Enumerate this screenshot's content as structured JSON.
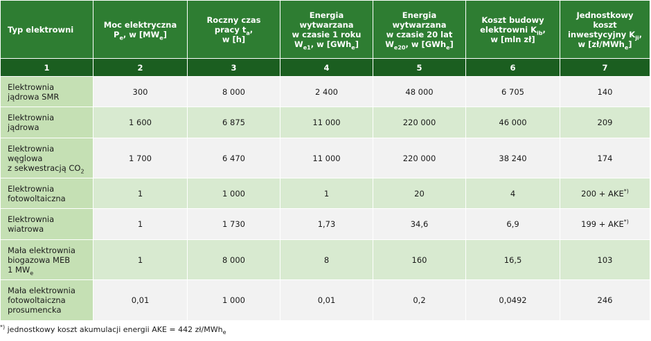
{
  "header": {
    "c1": "Typ elektrowni",
    "c2": {
      "l1": "Moc elektryczna",
      "l2a": "P",
      "l2sub": "e",
      "l2b": ", w [MW",
      "l2sub2": "e",
      "l2c": "]"
    },
    "c3": {
      "l1": "Roczny czas",
      "l2a": "pracy t",
      "l2sub": "a",
      "l2b": ",",
      "l3": "w [h]"
    },
    "c4": {
      "l1": "Energia",
      "l2": "wytwarzana",
      "l3": "w czasie 1 roku",
      "l4a": "W",
      "l4sub": "e1",
      "l4b": ", w [GWh",
      "l4sub2": "e",
      "l4c": "]"
    },
    "c5": {
      "l1": "Energia",
      "l2": "wytwarzana",
      "l3": "w czasie 20 lat",
      "l4a": "W",
      "l4sub": "e20",
      "l4b": ", w [GWh",
      "l4sub2": "e",
      "l4c": "]"
    },
    "c6": {
      "l1": "Koszt budowy",
      "l2a": "elektrowni K",
      "l2sub": "ib",
      "l2b": ",",
      "l3": "w [mln zł]"
    },
    "c7": {
      "l1": "Jednostkowy",
      "l2": "koszt",
      "l3a": "inwestycyjny K",
      "l3sub": "ji",
      "l3b": ",",
      "l4a": "w [zł/MWh",
      "l4sub": "e",
      "l4c": "]"
    }
  },
  "column_numbers": [
    "1",
    "2",
    "3",
    "4",
    "5",
    "6",
    "7"
  ],
  "rows": [
    {
      "label1": "Elektrownia",
      "label2": "jądrowa SMR",
      "values": [
        "300",
        "8 000",
        "2 400",
        "48 000",
        "6 705",
        "140"
      ]
    },
    {
      "label1": "Elektrownia",
      "label2": "jądrowa",
      "values": [
        "1 600",
        "6 875",
        "11 000",
        "220 000",
        "46 000",
        "209"
      ]
    },
    {
      "label1": "Elektrownia",
      "label2": "węglowa",
      "label3a": "z sekwestracją CO",
      "label3sub": "2",
      "values": [
        "1 700",
        "6 470",
        "11 000",
        "220 000",
        "38 240",
        "174"
      ]
    },
    {
      "label1": "Elektrownia",
      "label2": "fotowoltaiczna",
      "values": [
        "1",
        "1 000",
        "1",
        "20",
        "4"
      ],
      "last_a": "200 + AKE",
      "last_sup": "*)"
    },
    {
      "label1": "Elektrownia",
      "label2": "wiatrowa",
      "values": [
        "1",
        "1 730",
        "1,73",
        "34,6",
        "6,9"
      ],
      "last_a": "199 + AKE",
      "last_sup": "*)"
    },
    {
      "label1": "Mała elektrownia",
      "label2": "biogazowa MEB",
      "label3a": "1 MW",
      "label3sub": "e",
      "values": [
        "1",
        "8 000",
        "8",
        "160",
        "16,5",
        "103"
      ]
    },
    {
      "label1": "Mała elektrownia",
      "label2": "fotowoltaiczna",
      "label3": "prosumencka",
      "values": [
        "0,01",
        "1 000",
        "0,01",
        "0,2",
        "0,0492",
        "246"
      ]
    }
  ],
  "footnote": {
    "sup": "*)",
    "text": " jednostkowy koszt akumulacji energii AKE = 442 zł/MWh",
    "sub": "e"
  }
}
